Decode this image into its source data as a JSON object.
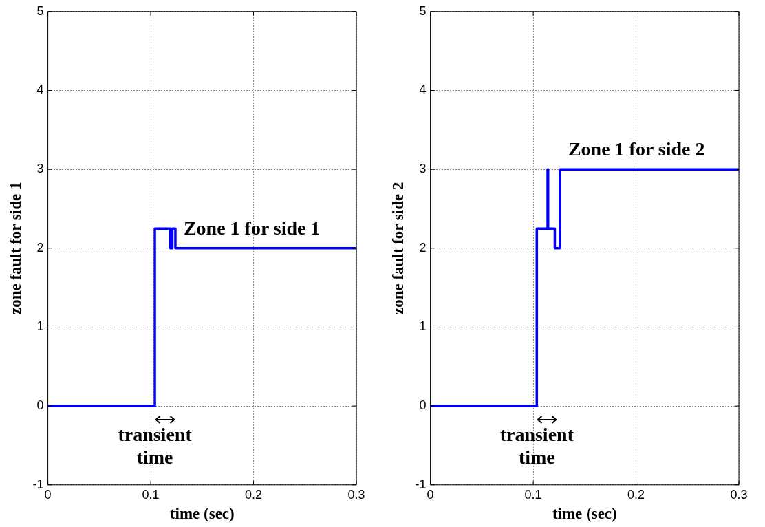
{
  "chart_data": [
    {
      "type": "step",
      "xlabel": "time (sec)",
      "ylabel": "zone fault for side 1",
      "x": [
        0,
        0.104,
        0.119,
        0.121,
        0.124,
        0.3
      ],
      "series": [
        {
          "color": "#0000ff",
          "values": [
            0,
            2.25,
            2,
            2.25,
            2,
            2
          ]
        }
      ],
      "xlim": [
        0,
        0.3
      ],
      "ylim": [
        -1,
        5
      ],
      "xticks": [
        0,
        0.1,
        0.2,
        0.3
      ],
      "yticks": [
        -1,
        0,
        1,
        2,
        3,
        4,
        5
      ],
      "grid": true,
      "annotations": [
        "Zone 1 for side 1",
        "transient time"
      ]
    },
    {
      "type": "step",
      "xlabel": "time (sec)",
      "ylabel": "zone fault for side 2",
      "x": [
        0,
        0.1035,
        0.114,
        0.1145,
        0.121,
        0.126,
        0.3
      ],
      "series": [
        {
          "color": "#0000ff",
          "values": [
            0,
            2.25,
            3,
            2.25,
            2,
            3,
            3
          ]
        }
      ],
      "xlim": [
        0,
        0.3
      ],
      "ylim": [
        -1,
        5
      ],
      "xticks": [
        0,
        0.1,
        0.2,
        0.3
      ],
      "yticks": [
        -1,
        0,
        1,
        2,
        3,
        4,
        5
      ],
      "grid": true,
      "annotations": [
        "Zone 1 for side 2",
        "transient time"
      ]
    }
  ]
}
